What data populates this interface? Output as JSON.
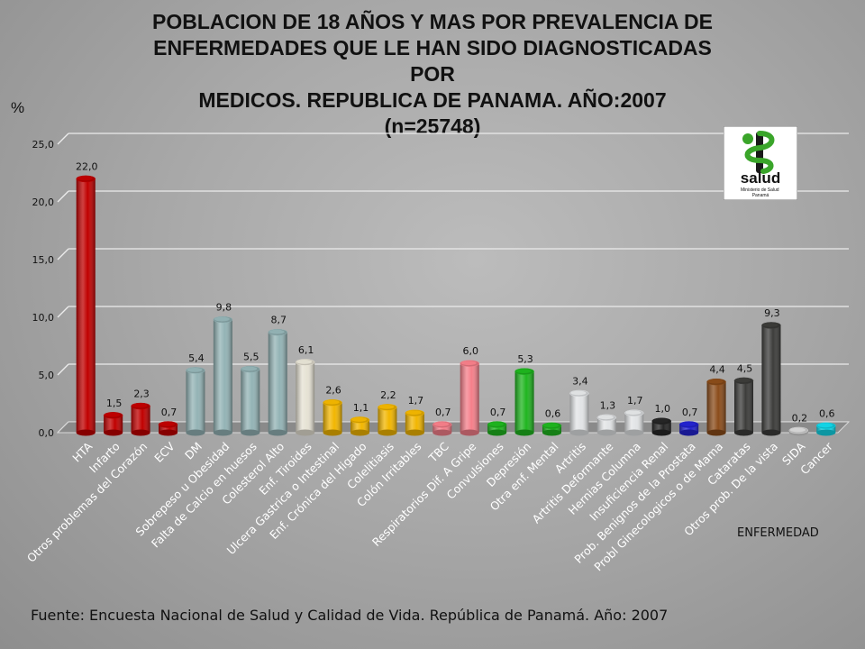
{
  "chart_data": {
    "type": "bar",
    "title": "POBLACION DE 18 AÑOS Y MAS POR PREVALENCIA DE\nENFERMEDADES QUE LE HAN SIDO DIAGNOSTICADAS\nPOR\nMEDICOS. REPUBLICA DE PANAMA. AÑO:2007\n(n=25748)",
    "ylabel": "%",
    "xlabel": "ENFERMEDAD",
    "ylim": [
      0,
      25
    ],
    "yticks": [
      "0,0",
      "5,0",
      "10,0",
      "15,0",
      "20,0",
      "25,0"
    ],
    "grid": true,
    "categories": [
      "HTA",
      "Infarto",
      "Otros problemas del Corazón",
      "ECV",
      "DM",
      "Sobrepeso u Obesidad",
      "Falta de Calcio en huesos",
      "Colesterol Alto",
      "Enf. Tiroides",
      "Ulcera Gastrica o Intestinal",
      "Enf. Crónica del Higado",
      "Colelitiasis",
      "Colón Irritables",
      "TBC",
      "Respiratorios Dif. A Gripe",
      "Convulsiones",
      "Depresión",
      "Otra enf. Mental",
      "Artritis",
      "Artritis Deformante",
      "Hernias Columna",
      "Insuficiencia Renal",
      "Prob. Benignos de la Prostata",
      "Probl Ginecologicos o de Mama",
      "Cataratas",
      "Otros prob. De la vista",
      "SIDA",
      "Cancer"
    ],
    "values": [
      22.0,
      1.5,
      2.3,
      0.7,
      5.4,
      9.8,
      5.5,
      8.7,
      6.1,
      2.6,
      1.1,
      2.2,
      1.7,
      0.7,
      6.0,
      0.7,
      5.3,
      0.6,
      3.4,
      1.3,
      1.7,
      1.0,
      0.7,
      4.4,
      4.5,
      9.3,
      0.2,
      0.6
    ],
    "value_labels": [
      "22,0",
      "1,5",
      "2,3",
      "0,7",
      "5,4",
      "9,8",
      "5,5",
      "8,7",
      "6,1",
      "2,6",
      "1,1",
      "2,2",
      "1,7",
      "0,7",
      "6,0",
      "0,7",
      "5,3",
      "0,6",
      "3,4",
      "1,3",
      "1,7",
      "1,0",
      "0,7",
      "4,4",
      "4,5",
      "9,3",
      "0,2",
      "0,6"
    ],
    "colors": [
      "#c00000",
      "#c00000",
      "#c00000",
      "#c00000",
      "#93b3b5",
      "#93b3b5",
      "#93b3b5",
      "#93b3b5",
      "#e6e2d4",
      "#f2b600",
      "#f2b600",
      "#f2b600",
      "#f2b600",
      "#f57f8a",
      "#f57f8a",
      "#1fb51f",
      "#1fb51f",
      "#1fb51f",
      "#e2e4e6",
      "#e2e4e6",
      "#e2e4e6",
      "#262626",
      "#2323d0",
      "#8b4c1a",
      "#3c3c3a",
      "#3c3c3a",
      "#d6d6d6",
      "#12d6e8"
    ]
  },
  "footer": "Fuente: Encuesta Nacional de Salud y Calidad de Vida. República de Panamá. Año: 2007",
  "logo": {
    "icon": "snake-staff-icon",
    "text": "salud",
    "subtext": "Ministerio de Salud\nPanamá"
  }
}
